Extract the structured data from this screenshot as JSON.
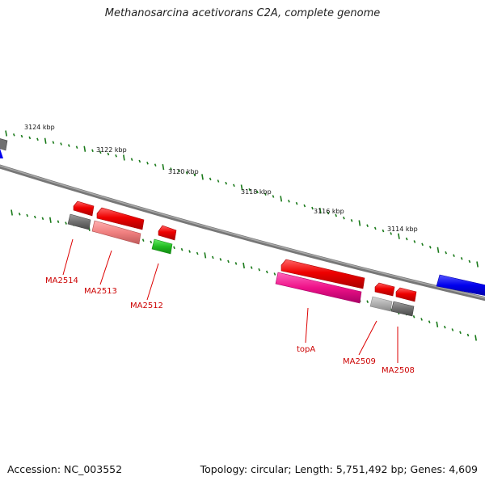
{
  "title": "Methanosarcina acetivorans C2A, complete genome",
  "footer": {
    "accession": "Accession: NC_003552",
    "topology": "Topology: circular; Length: 5,751,492 bp; Genes: 4,609"
  },
  "ticks": [
    "3124 kbp",
    "3122 kbp",
    "3120 kbp",
    "3118 kbp",
    "3116 kbp",
    "3114 kbp"
  ],
  "gene_labels": [
    "MA2514",
    "MA2513",
    "MA2512",
    "topA",
    "MA2509",
    "MA2508"
  ],
  "colors": {
    "backbone": "#808080",
    "tick": "#1a7a1a",
    "gene_red": "#ee0000",
    "gene_pink": "#f08080",
    "gene_green": "#22bb22",
    "gene_magenta": "#ee1188",
    "gene_gray": "#707070",
    "gene_lightgray": "#b0b0b0",
    "gene_blue": "#0000ee",
    "label_red": "#cc0000"
  }
}
